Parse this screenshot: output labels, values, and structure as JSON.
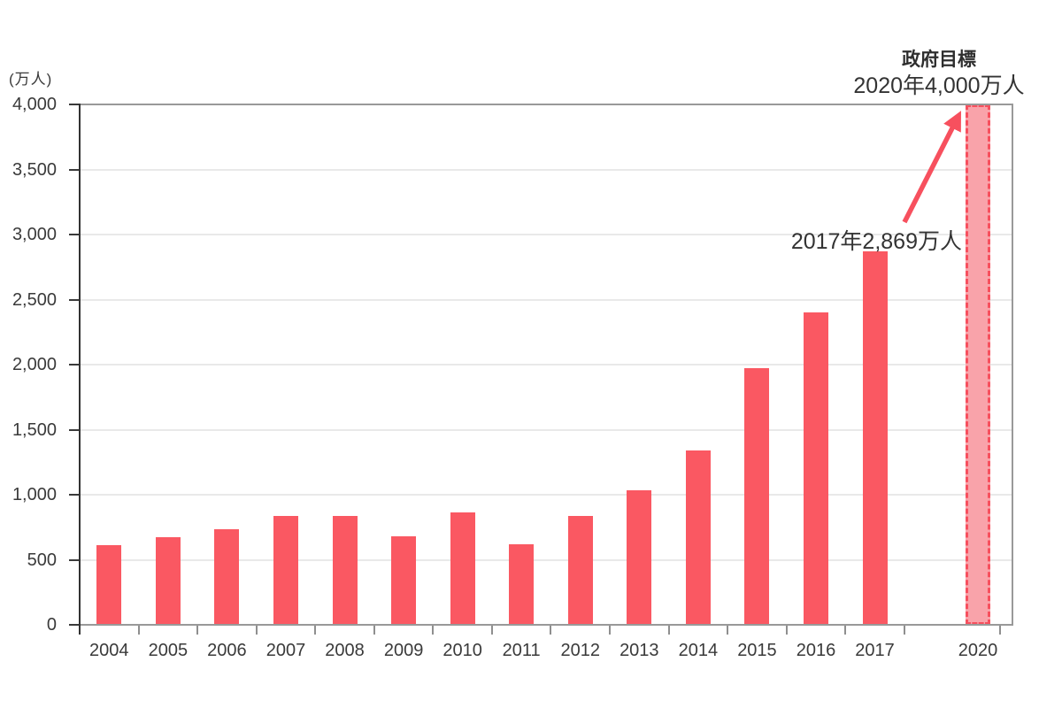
{
  "chart": {
    "unit_label": "(万人)",
    "y_axis": {
      "tick_labels": [
        "4,000",
        "3,500",
        "3,000",
        "2,500",
        "2,000",
        "1,500",
        "1,000",
        "500",
        "0"
      ],
      "max": 4000,
      "step": 500
    },
    "x_axis": {
      "labels": [
        "2004",
        "2005",
        "2006",
        "2007",
        "2008",
        "2009",
        "2010",
        "2011",
        "2012",
        "2013",
        "2014",
        "2015",
        "2016",
        "2017",
        "2020"
      ]
    },
    "annotations": {
      "target_title": "政府目標",
      "target_value_line": "2020年4,000万人",
      "actual_2017_label": "2017年2,869万人"
    },
    "colors": {
      "bar": "#fa5862",
      "target_bar_fill": "#f9a3aa",
      "target_bar_border": "#f7505e",
      "arrow": "#f7505e",
      "gridline": "#e9e9e9",
      "plot_border": "#999999",
      "y_axis_line": "#333333",
      "x_tick": "#8f8f8f",
      "y_tick": "#3a3a3a",
      "text": "#333333"
    }
  },
  "chart_data": {
    "type": "bar",
    "categories": [
      "2004",
      "2005",
      "2006",
      "2007",
      "2008",
      "2009",
      "2010",
      "2011",
      "2012",
      "2013",
      "2014",
      "2015",
      "2016",
      "2017",
      "2020"
    ],
    "values": [
      614,
      673,
      733,
      835,
      835,
      679,
      861,
      622,
      836,
      1036,
      1341,
      1974,
      2404,
      2869,
      4000
    ],
    "title": "",
    "xlabel": "",
    "ylabel": "(万人)",
    "ylim": [
      0,
      4000
    ],
    "grid": true,
    "target_bar": {
      "category": "2020",
      "value": 4000,
      "style": "dashed-outline",
      "label": "政府目標 2020年4,000万人"
    },
    "annotations": [
      {
        "text": "2017年2,869万人",
        "target_category": "2017"
      },
      {
        "text": "政府目標",
        "target_category": "2020"
      },
      {
        "text": "2020年4,000万人",
        "target_category": "2020"
      }
    ]
  }
}
